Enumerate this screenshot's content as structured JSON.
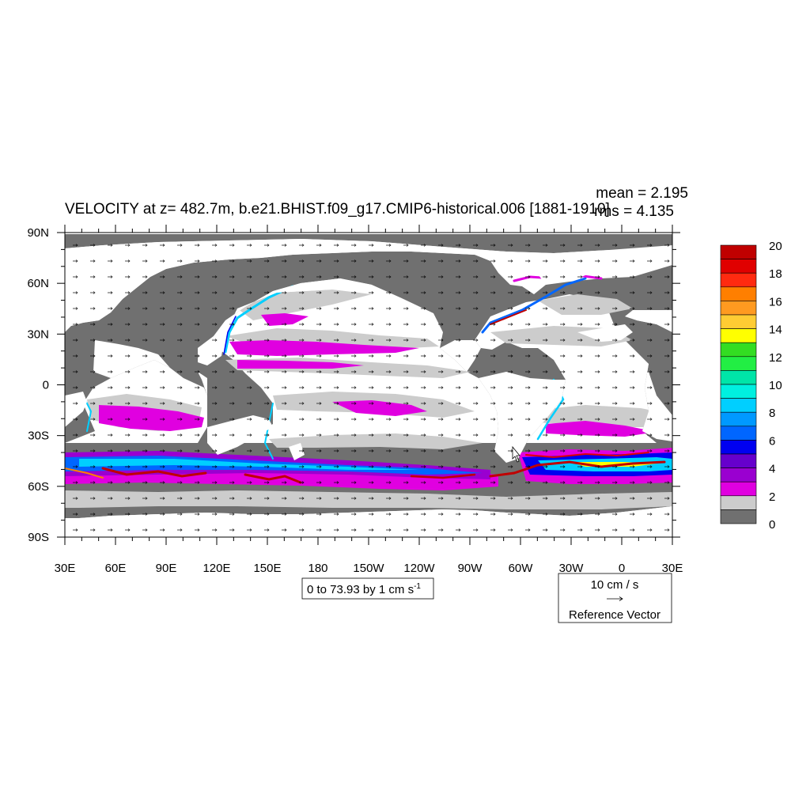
{
  "title": "VELOCITY at z= 482.7m, b.e21.BHIST.f09_g17.CMIP6-historical.006 [1881-1910]",
  "stats": {
    "mean": "mean = 2.195",
    "rms": "rms = 4.135"
  },
  "axes": {
    "lat_labels": [
      "90N",
      "60N",
      "30N",
      "0",
      "30S",
      "60S",
      "90S"
    ],
    "lon_labels": [
      "30E",
      "60E",
      "90E",
      "120E",
      "150E",
      "180",
      "150W",
      "120W",
      "90W",
      "60W",
      "30W",
      "0",
      "30E"
    ]
  },
  "contour_info": {
    "text": "0 to 73.93 by 1 cm s",
    "superscript": "-1"
  },
  "reference_vector": {
    "magnitude": "10 cm / s",
    "label": "Reference Vector"
  },
  "colorbar": {
    "labels": [
      "20",
      "18",
      "16",
      "14",
      "12",
      "10",
      "8",
      "6",
      "4",
      "2",
      "0"
    ],
    "colors": [
      "#c00000",
      "#e00000",
      "#ff2a10",
      "#ff7f00",
      "#ff9a20",
      "#ffcc33",
      "#ffff00",
      "#33dd22",
      "#22ee44",
      "#00e5a8",
      "#00f0e0",
      "#00cfff",
      "#0099ff",
      "#0066ff",
      "#0000f0",
      "#6600cc",
      "#9a00d0",
      "#e000e0",
      "#cccccc",
      "#707070"
    ]
  }
}
